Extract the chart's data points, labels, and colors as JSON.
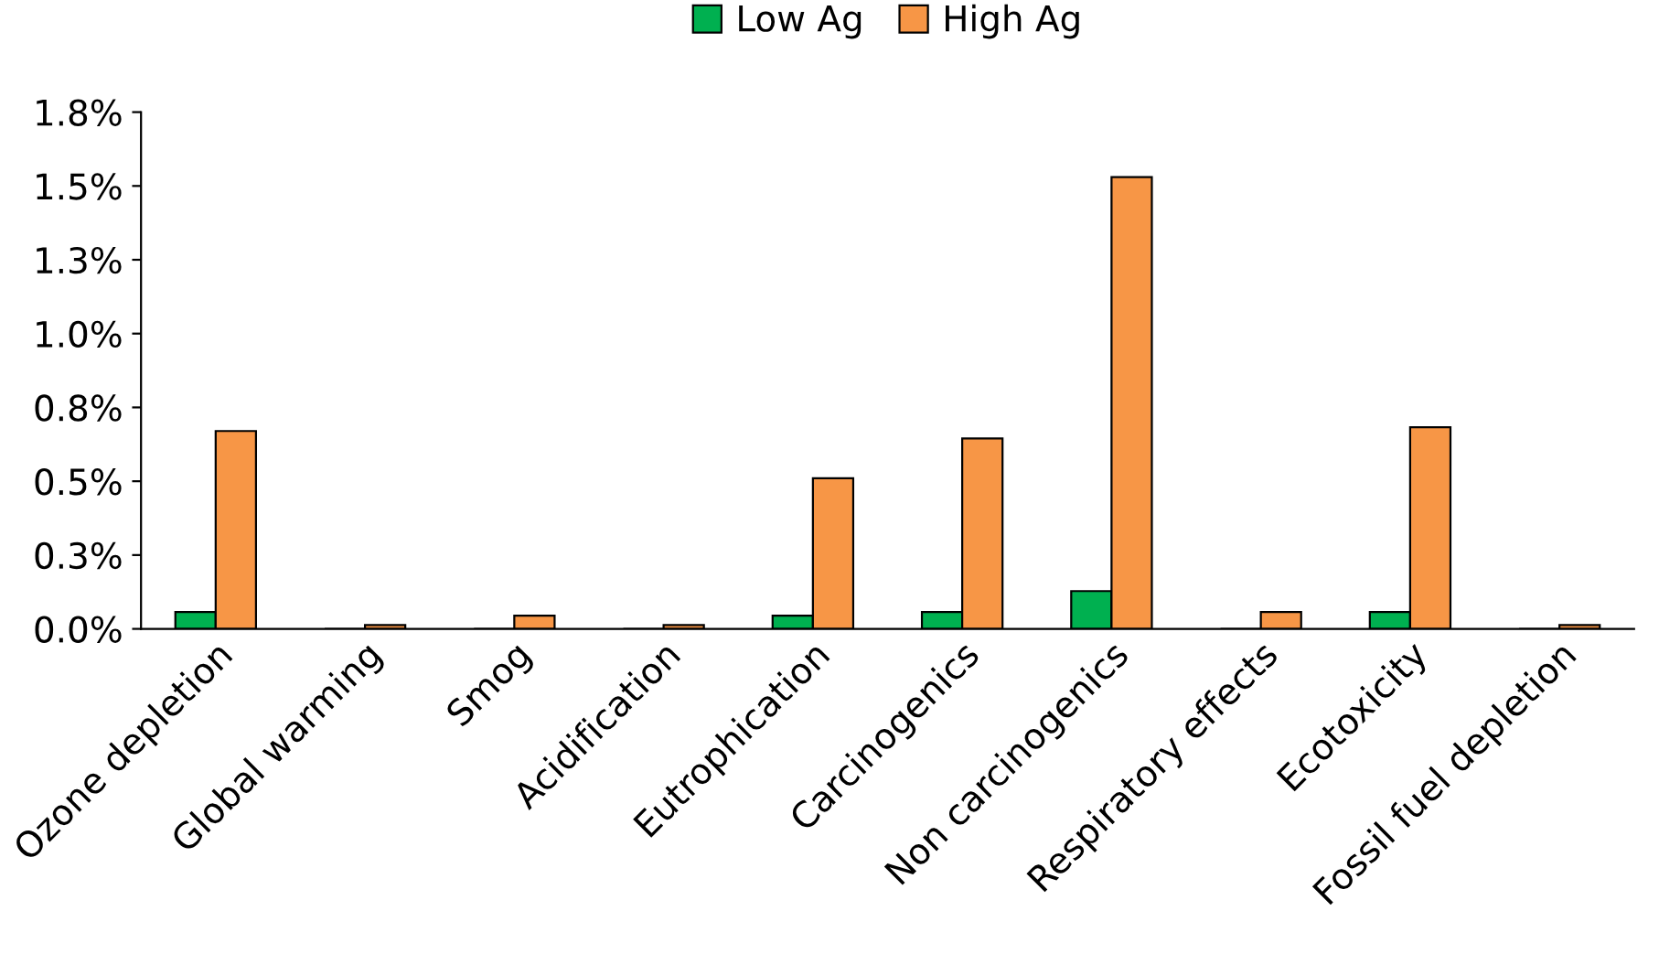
{
  "chart_data": {
    "type": "bar",
    "categories": [
      "Ozone depletion",
      "Global warming",
      "Smog",
      "Acidification",
      "Eutrophication",
      "Carcinogenics",
      "Non carcinogenics",
      "Respiratory effects",
      "Ecotoxicity",
      "Fossil fuel depletion"
    ],
    "series": [
      {
        "name": "Low Ag",
        "color": "#00b050",
        "values": [
          0.057,
          null,
          null,
          null,
          0.045,
          0.057,
          0.128,
          null,
          0.057,
          null
        ]
      },
      {
        "name": "High Ag",
        "color": "#f79646",
        "values": [
          0.67,
          0.013,
          0.045,
          0.013,
          0.51,
          0.645,
          1.53,
          0.057,
          0.683,
          0.013
        ]
      }
    ],
    "ylim": [
      0,
      1.75
    ],
    "yticks": [
      {
        "value": 0,
        "label": "0.0%"
      },
      {
        "value": 0.25,
        "label": "0.3%"
      },
      {
        "value": 0.5,
        "label": "0.5%"
      },
      {
        "value": 0.75,
        "label": "0.8%"
      },
      {
        "value": 1.0,
        "label": "1.0%"
      },
      {
        "value": 1.25,
        "label": "1.3%"
      },
      {
        "value": 1.5,
        "label": "1.5%"
      },
      {
        "value": 1.75,
        "label": "1.8%"
      }
    ],
    "grid": false,
    "legend": "top"
  }
}
